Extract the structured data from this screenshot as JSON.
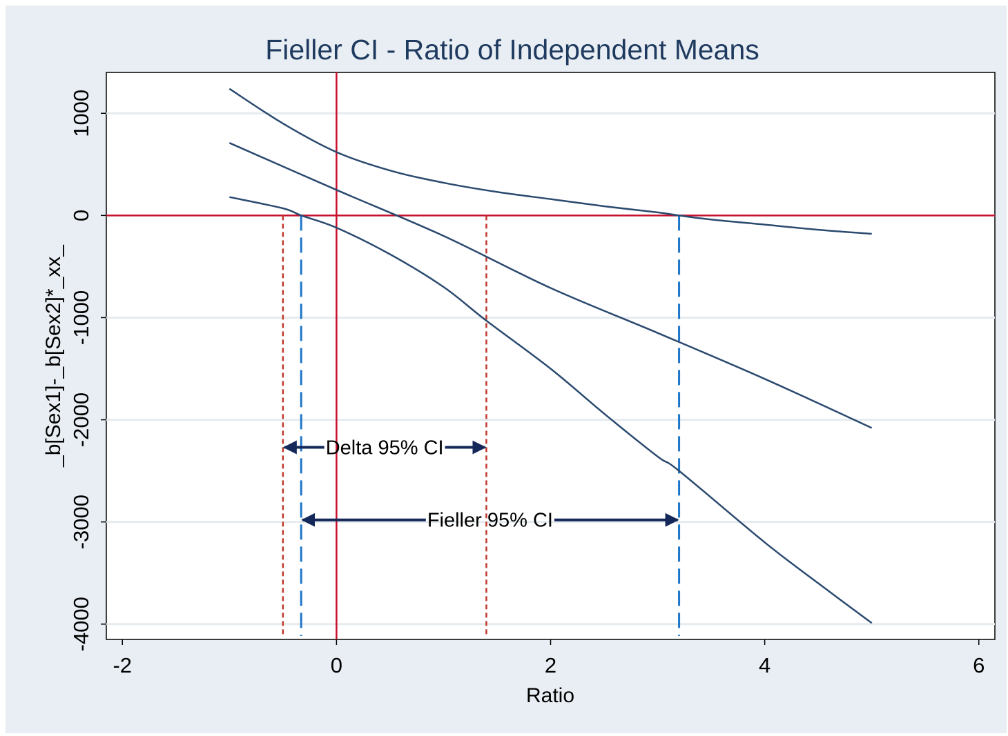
{
  "chart_data": {
    "type": "line",
    "title": "Fieller CI - Ratio of Independent Means",
    "xlabel": "Ratio",
    "ylabel": "_b[Sex1]-_b[Sex2]*_xx_",
    "xlim": [
      -2.15,
      6.15
    ],
    "ylim": [
      -4150,
      1400
    ],
    "xticks": [
      -2,
      0,
      2,
      4,
      6
    ],
    "yticks": [
      -4000,
      -3000,
      -2000,
      -1000,
      0,
      1000
    ],
    "xtick_labels": [
      "-2",
      "0",
      "2",
      "4",
      "6"
    ],
    "ytick_labels": [
      "-4000",
      "-3000",
      "-2000",
      "-1000",
      "0",
      "1000"
    ],
    "grid": true,
    "series": [
      {
        "role": "upper-bound",
        "x": [
          -1,
          -0.5,
          0,
          0.5,
          1,
          1.5,
          2,
          2.5,
          3,
          3.2,
          3.5,
          4,
          4.5,
          5
        ],
        "y": [
          1240,
          900,
          620,
          440,
          320,
          230,
          160,
          90,
          30,
          0,
          -40,
          -90,
          -140,
          -180
        ]
      },
      {
        "role": "point-estimate",
        "x": [
          -1,
          0,
          1,
          2,
          3,
          4,
          5
        ],
        "y": [
          710,
          250,
          -200,
          -710,
          -1150,
          -1600,
          -2080
        ]
      },
      {
        "role": "lower-bound",
        "x": [
          -1,
          -0.5,
          -0.33,
          0,
          0.5,
          1,
          1.4,
          2,
          2.5,
          3,
          3.2,
          4,
          4.5,
          5
        ],
        "y": [
          180,
          70,
          0,
          -120,
          -380,
          -700,
          -1030,
          -1500,
          -1940,
          -2360,
          -2500,
          -3200,
          -3600,
          -3990
        ]
      }
    ],
    "reference_lines": {
      "color": "#c8102e",
      "x": 0,
      "y": 0
    },
    "delta_ci": {
      "label": "Delta 95% CI",
      "lower": -0.5,
      "upper": 1.4,
      "arrow_y": -2270,
      "color": "#c0392b"
    },
    "fieller_ci": {
      "label": "Fieller 95% CI",
      "lower": -0.33,
      "upper": 3.2,
      "arrow_y": -2980,
      "color": "#1f77c8"
    },
    "colors": {
      "curve": "#2b4a6f",
      "arrow": "#14285a",
      "grid": "#e6ebef",
      "title": "#1f3a5f"
    }
  }
}
